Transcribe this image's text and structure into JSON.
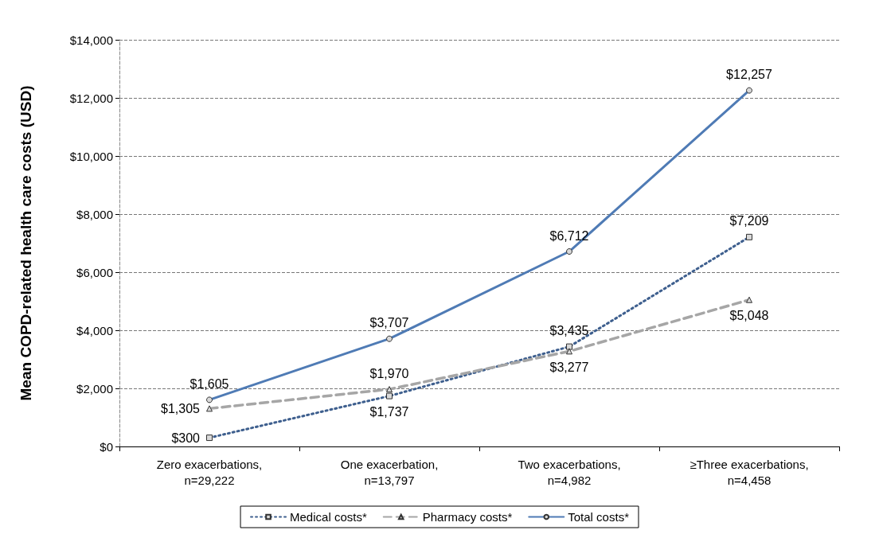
{
  "chart_data": {
    "type": "line",
    "ylabel": "Mean COPD-related health care costs (USD)",
    "categories": [
      "Zero exacerbations,\nn=29,222",
      "One exacerbation,\nn=13,797",
      "Two exacerbations,\nn=4,982",
      "≥Three exacerbations,\nn=4,458"
    ],
    "series": [
      {
        "name": "Medical costs*",
        "color": "#3e5f8e",
        "values": [
          300,
          1737,
          3435,
          7209
        ],
        "marker": "square",
        "line_style": "dotted",
        "value_labels": [
          "$300",
          "$1,737",
          "$3,435",
          "$7,209"
        ]
      },
      {
        "name": "Pharmacy costs*",
        "color": "#a6a6a6",
        "values": [
          1305,
          1970,
          3277,
          5048
        ],
        "marker": "triangle",
        "line_style": "dashed",
        "value_labels": [
          "$1,305",
          "$1,970",
          "$3,277",
          "$5,048"
        ]
      },
      {
        "name": "Total costs*",
        "color": "#4f7bb5",
        "values": [
          1605,
          3707,
          6712,
          12257
        ],
        "marker": "circle",
        "line_style": "solid",
        "value_labels": [
          "$1,605",
          "$3,707",
          "$6,712",
          "$12,257"
        ]
      }
    ],
    "ylim": [
      0,
      14000
    ],
    "yticks": [
      {
        "value": 0,
        "label": "$0"
      },
      {
        "value": 2000,
        "label": "$2,000"
      },
      {
        "value": 4000,
        "label": "$4,000"
      },
      {
        "value": 6000,
        "label": "$6,000"
      },
      {
        "value": 8000,
        "label": "$8,000"
      },
      {
        "value": 10000,
        "label": "$10,000"
      },
      {
        "value": 12000,
        "label": "$12,000"
      },
      {
        "value": 14000,
        "label": "$14,000"
      }
    ],
    "grid": "y",
    "legend": "bottom"
  }
}
